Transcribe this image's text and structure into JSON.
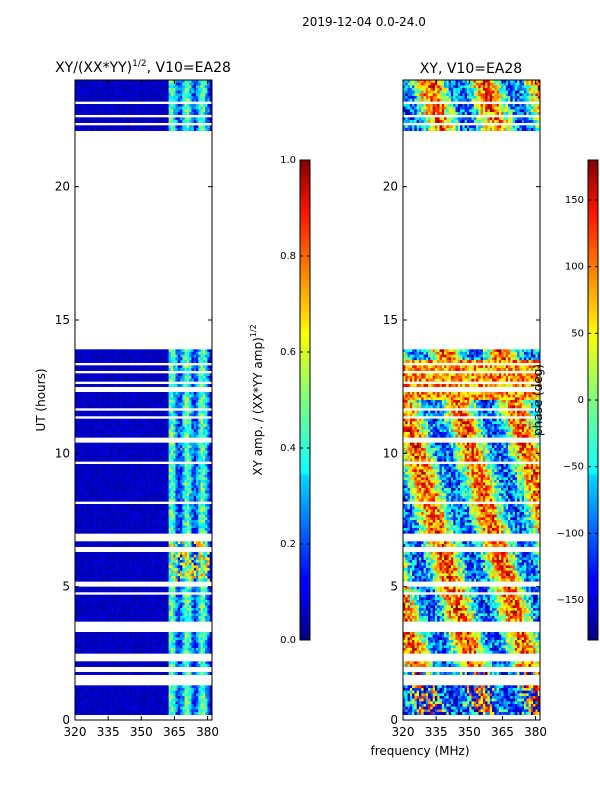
{
  "suptitle": "2019-12-04 0.0-24.0",
  "xlabel": "frequency (MHz)",
  "chart_data": [
    {
      "type": "heatmap",
      "title": "XY/(XX*YY)",
      "title_sup": "1/2",
      "title_suffix": ", V10=EA28",
      "ylabel": "UT (hours)",
      "xlim": [
        320,
        382
      ],
      "ylim": [
        0,
        24
      ],
      "xticks": [
        "320",
        "335",
        "350",
        "365",
        "380"
      ],
      "yticks": [
        "0",
        "5",
        "10",
        "15",
        "20"
      ],
      "data_gap_hours": [
        22.1,
        13.9
      ],
      "colorbar": {
        "label": "XY amp. / (XX*YY amp)",
        "label_sup": "1/2",
        "range": [
          0.0,
          1.0
        ],
        "ticks": [
          "0.0",
          "0.2",
          "0.4",
          "0.6",
          "0.8",
          "1.0"
        ]
      }
    },
    {
      "type": "heatmap",
      "title": "XY, V10=EA28",
      "ylabel": "",
      "xlim": [
        320,
        382
      ],
      "ylim": [
        0,
        24
      ],
      "xticks": [
        "320",
        "335",
        "350",
        "365",
        "380"
      ],
      "yticks": [
        "0",
        "5",
        "10",
        "15",
        "20"
      ],
      "data_gap_hours": [
        22.1,
        13.9
      ],
      "colorbar": {
        "label": "phase (deg)",
        "range": [
          -180,
          180
        ],
        "ticks": [
          "−150",
          "−100",
          "−50",
          "0",
          "50",
          "100",
          "150"
        ]
      }
    }
  ]
}
